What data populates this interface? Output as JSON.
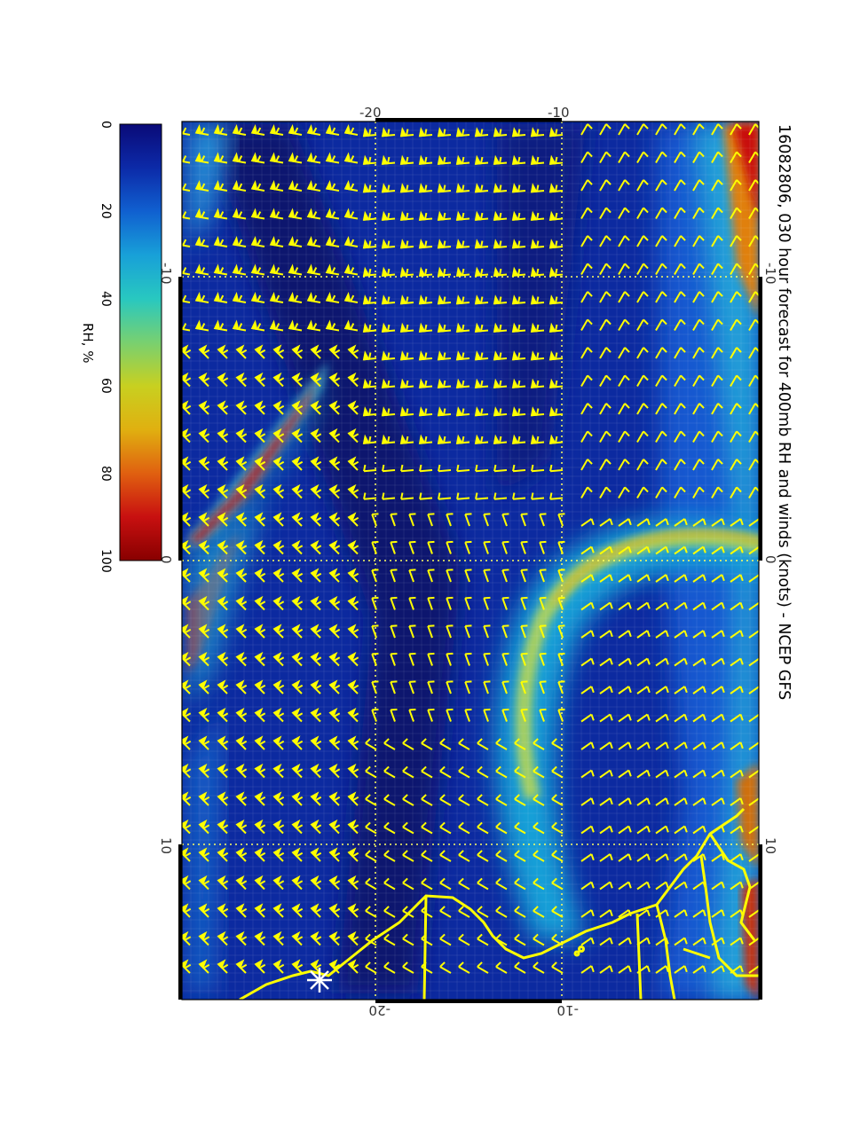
{
  "title": "16082806, 030 hour forecast for 400mb RH and winds (knots) - NCEP GFS",
  "colorbar": {
    "label": "RH, %",
    "ticks": [
      "0",
      "20",
      "40",
      "60",
      "80",
      "100"
    ],
    "stops": [
      "#0a0a78",
      "#0c2aa8",
      "#1060d0",
      "#18a0d8",
      "#28c8c0",
      "#78d070",
      "#c8d020",
      "#e0b010",
      "#e06010",
      "#c81010",
      "#880000"
    ]
  },
  "axes": {
    "top_ticks": [
      "-20",
      "-10"
    ],
    "bottom_ticks": [
      "-20",
      "-10"
    ],
    "left_ticks": [
      "-10",
      "0",
      "10"
    ],
    "right_ticks": [
      "-10",
      "0",
      "10"
    ]
  },
  "colors": {
    "wind_barbs": "#ffff00",
    "coastline": "#ffff00",
    "grid": "#ffff60",
    "background_low_rh": "#0b2a9e"
  },
  "icons": [
    "star-marker-icon"
  ]
}
